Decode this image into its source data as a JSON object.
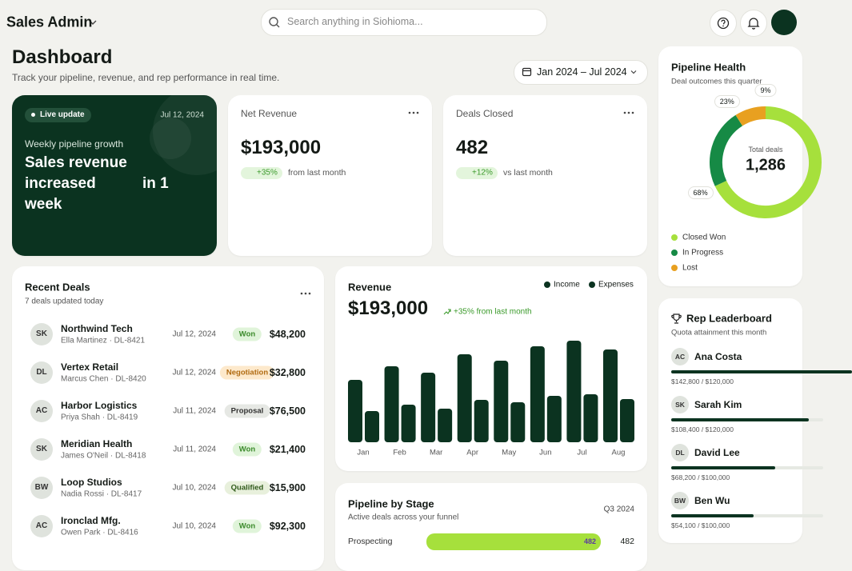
{
  "header": {
    "app_name": "Sales Admin",
    "search_placeholder": "Search anything in Siohioma..."
  },
  "page": {
    "title": "Dashboard",
    "subtitle": "Track your pipeline, revenue, and rep performance in real time.",
    "date_range": "Jan 2024 – Jul 2024"
  },
  "hero": {
    "badge": "Live update",
    "date": "Jul 12, 2024",
    "kicker": "Weekly pipeline growth",
    "headline": [
      "Sales revenue",
      "increased",
      "in 1",
      "week"
    ]
  },
  "kpis": [
    {
      "label": "Net Revenue",
      "value": "$193,000",
      "change": "+35%",
      "note": "from last month"
    },
    {
      "label": "Deals Closed",
      "value": "482",
      "change": "+12%",
      "note": "vs last month"
    }
  ],
  "recent_deals": {
    "title": "Recent Deals",
    "subtitle": "7 deals updated today",
    "rows": [
      {
        "initials": "SK",
        "name": "Northwind Tech",
        "contact": "Ella Martinez · DL-8421",
        "date": "Jul 12, 2024",
        "status": "Won",
        "amount": "$48,200"
      },
      {
        "initials": "DL",
        "name": "Vertex Retail",
        "contact": "Marcus Chen · DL-8420",
        "date": "Jul 12, 2024",
        "status": "Negotiation",
        "amount": "$32,800"
      },
      {
        "initials": "AC",
        "name": "Harbor Logistics",
        "contact": "Priya Shah · DL-8419",
        "date": "Jul 11, 2024",
        "status": "Proposal",
        "amount": "$76,500"
      },
      {
        "initials": "SK",
        "name": "Meridian Health",
        "contact": "James O'Neil · DL-8418",
        "date": "Jul 11, 2024",
        "status": "Won",
        "amount": "$21,400"
      },
      {
        "initials": "BW",
        "name": "Loop Studios",
        "contact": "Nadia Rossi · DL-8417",
        "date": "Jul 10, 2024",
        "status": "Qualified",
        "amount": "$15,900"
      },
      {
        "initials": "AC",
        "name": "Ironclad Mfg.",
        "contact": "Owen Park · DL-8416",
        "date": "Jul 10, 2024",
        "status": "Won",
        "amount": "$92,300"
      }
    ]
  },
  "leaderboard": {
    "title": "Rep Leaderboard",
    "subtitle": "Quota attainment this month",
    "reps": [
      {
        "initials": "AC",
        "name": "Ana Costa",
        "attainment": "$142,800 / $120,000",
        "attained": 142800,
        "quota": 120000
      },
      {
        "initials": "SK",
        "name": "Sarah Kim",
        "attainment": "$108,400 / $120,000",
        "attained": 108400,
        "quota": 120000
      },
      {
        "initials": "DL",
        "name": "David Lee",
        "attainment": "$68,200 / $100,000",
        "attained": 68200,
        "quota": 100000
      },
      {
        "initials": "BW",
        "name": "Ben Wu",
        "attainment": "$54,100 / $100,000",
        "attained": 54100,
        "quota": 100000
      }
    ]
  },
  "chart_data": [
    {
      "type": "bar",
      "title": "Revenue",
      "value": "$193,000",
      "change": "+35% from last month",
      "categories": [
        "Jan",
        "Feb",
        "Mar",
        "Apr",
        "May",
        "Jun",
        "Jul",
        "Aug"
      ],
      "series": [
        {
          "name": "Income",
          "color": "#0b3320",
          "values": [
            78,
            95,
            87,
            110,
            102,
            120,
            127,
            116
          ]
        },
        {
          "name": "Expenses",
          "color": "#0b3320",
          "values": [
            39,
            47,
            42,
            53,
            50,
            58,
            60,
            54
          ]
        }
      ],
      "ylim": [
        0,
        130
      ]
    },
    {
      "type": "pie",
      "title": "Pipeline Health",
      "subtitle": "Deal outcomes this quarter",
      "center_label": "Total deals",
      "total": "1,286",
      "categories": [
        "Closed Won",
        "In Progress",
        "Lost"
      ],
      "values": [
        68,
        23,
        9
      ],
      "value_labels": [
        "68%",
        "23%",
        "9%"
      ],
      "colors": [
        "#a6e03c",
        "#168a45",
        "#e8a020"
      ]
    },
    {
      "type": "hbar",
      "title": "Pipeline by Stage",
      "subtitle": "Active deals across your funnel",
      "period": "Q3 2024",
      "categories": [
        "Prospecting"
      ],
      "values": [
        482
      ],
      "color": "#a6e03c",
      "xlim": [
        0,
        482
      ]
    }
  ]
}
